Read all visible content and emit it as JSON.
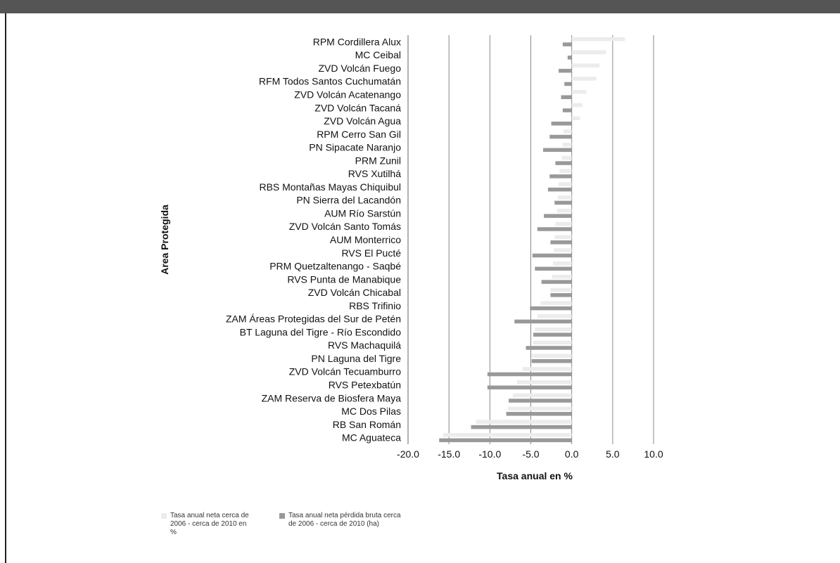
{
  "chart_data": {
    "type": "bar",
    "orientation": "horizontal",
    "xlabel": "Tasa anual en %",
    "ylabel": "Area Protegida",
    "xlim": [
      -20,
      10
    ],
    "xticks": [
      "-20.0",
      "-15.0",
      "-10.0",
      "-5.0",
      "0.0",
      "5.0",
      "10.0"
    ],
    "grid": true,
    "legend_position": "bottom-left",
    "categories": [
      "RPM Cordillera Alux",
      "MC Ceibal",
      "ZVD Volcán Fuego",
      "RFM Todos Santos Cuchumatán",
      "ZVD Volcán Acatenango",
      "ZVD Volcán Tacaná",
      "ZVD Volcán Agua",
      "RPM Cerro San Gil",
      "PN Sipacate Naranjo",
      "PRM Zunil",
      "RVS Xutilhá",
      "RBS Montañas Mayas Chiquibul",
      "PN Sierra del Lacandón",
      "AUM Río Sarstún",
      "ZVD Volcán Santo Tomás",
      "AUM Monterrico",
      "RVS El Pucté",
      "PRM Quetzaltenango - Saqbé",
      "RVS Punta de Manabique",
      "ZVD Volcán Chicabal",
      "RBS Trifinio",
      "ZAM Áreas Protegidas del Sur de Petén",
      "BT Laguna del Tigre - Río Escondido",
      "RVS Machaquilá",
      "PN Laguna del Tigre",
      "ZVD Volcán Tecuamburro",
      "RVS Petexbatún",
      "ZAM Reserva de Biosfera Maya",
      "MC Dos Pilas",
      "RB San Román",
      "MC Aguateca"
    ],
    "series": [
      {
        "name": "Tasa anual neta cerca de 2006 - cerca de 2010 en %",
        "color": "#ececec",
        "values": [
          6.5,
          4.2,
          3.4,
          3.0,
          1.8,
          1.3,
          1.0,
          -1.0,
          -1.1,
          -1.2,
          -1.5,
          -1.6,
          -1.7,
          -1.8,
          -2.0,
          -2.1,
          -2.2,
          -2.3,
          -2.4,
          -2.6,
          -3.8,
          -4.2,
          -4.5,
          -4.7,
          -4.9,
          -6.0,
          -6.7,
          -7.2,
          -7.8,
          -11.7,
          -15.7
        ]
      },
      {
        "name": "Tasa anual neta pérdida bruta cerca de 2006 - cerca de 2010 (ha)",
        "color": "#999999",
        "values": [
          -1.1,
          -0.5,
          -1.6,
          -0.9,
          -1.3,
          -1.1,
          -2.5,
          -2.7,
          -3.5,
          -2.0,
          -2.7,
          -2.9,
          -2.1,
          -3.4,
          -4.2,
          -2.6,
          -4.8,
          -4.5,
          -3.7,
          -2.6,
          -5.1,
          -7.0,
          -4.7,
          -5.6,
          -4.9,
          -10.3,
          -10.3,
          -7.7,
          -8.0,
          -12.3,
          -16.2
        ]
      }
    ]
  }
}
